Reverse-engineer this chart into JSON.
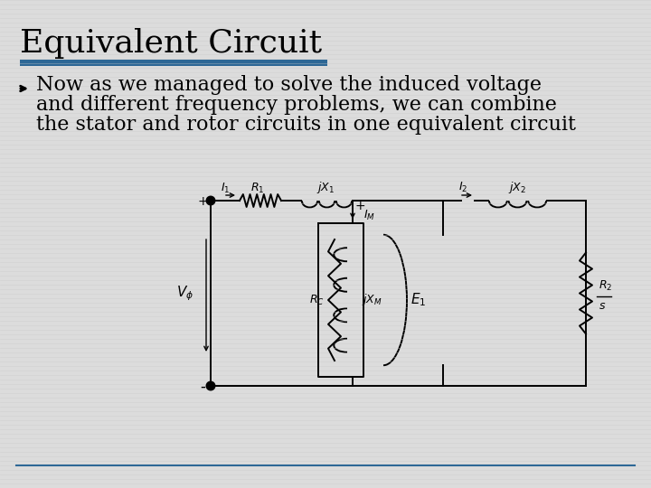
{
  "title": "Equivalent Circuit",
  "title_fontsize": 26,
  "title_color": "#000000",
  "title_bar_color": "#2E6896",
  "bullet_text_line1": "Now as we managed to solve the induced voltage",
  "bullet_text_line2": "and different frequency problems, we can combine",
  "bullet_text_line3": "the stator and rotor circuits in one equivalent circuit",
  "bullet_fontsize": 16,
  "bullet_color": "#000000",
  "background_color": "#dcdcdc",
  "bottom_line_color": "#2E6896",
  "circuit_color": "#000000",
  "stripe_color": "#c8c8c8",
  "stripe_alpha": 0.5
}
